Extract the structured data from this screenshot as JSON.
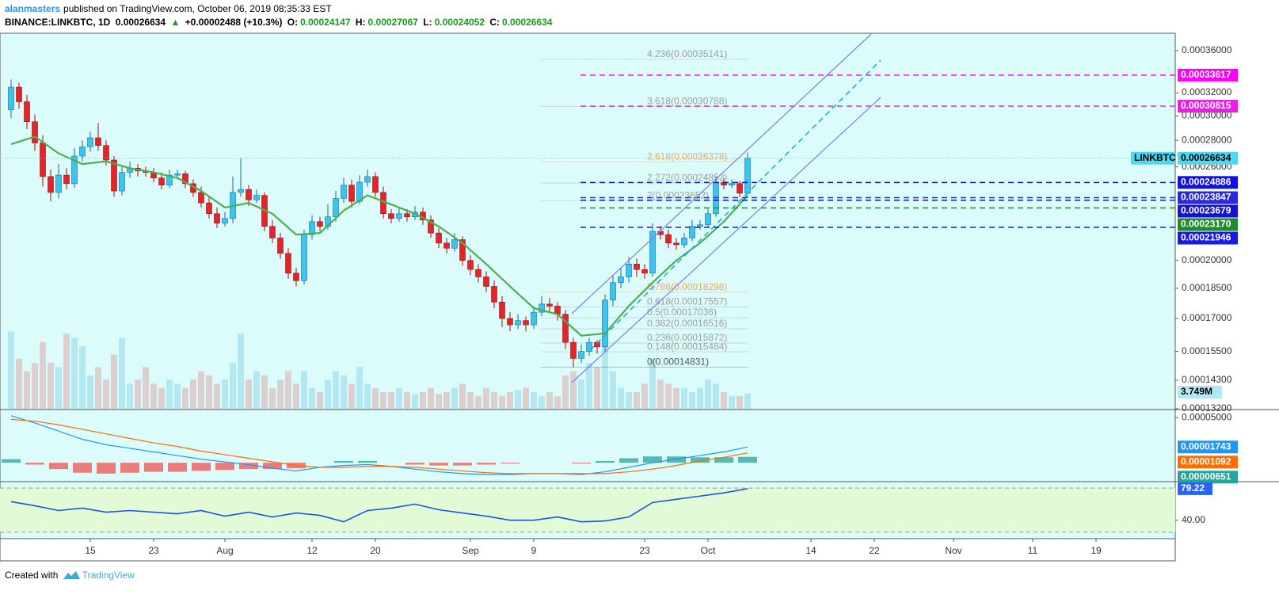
{
  "header": {
    "author": "alanmasters",
    "published": "published on TradingView.com, October 06, 2019 08:35:33 EST",
    "symbol": "BINANCE:LINKBTC, 1D",
    "last": "0.00026634",
    "arrow": "▲",
    "change": "+0.00002488 (+10.3%)",
    "o_label": "O:",
    "o": "0.00024147",
    "h_label": "H:",
    "h": "0.00027067",
    "l_label": "L:",
    "l": "0.00024052",
    "c_label": "C:",
    "c": "0.00026634"
  },
  "footer": {
    "created": "Created with",
    "brand": "TradingView"
  },
  "chart_data": [
    {
      "type": "candlestick",
      "log_scale": true,
      "xlim": [
        -1.4,
        147
      ],
      "ylim": [
        0.000132,
        0.000378
      ],
      "xticks": [
        {
          "value": 10,
          "label": "15"
        },
        {
          "value": 18,
          "label": "23"
        },
        {
          "value": 27,
          "label": "Aug"
        },
        {
          "value": 38,
          "label": "12"
        },
        {
          "value": 46,
          "label": "20"
        },
        {
          "value": 58,
          "label": "Sep"
        },
        {
          "value": 66,
          "label": "9"
        },
        {
          "value": 80,
          "label": "23"
        },
        {
          "value": 88,
          "label": "Oct"
        },
        {
          "value": 101,
          "label": "14"
        },
        {
          "value": 109,
          "label": "22"
        },
        {
          "value": 119,
          "label": "Nov"
        },
        {
          "value": 129,
          "label": "11"
        },
        {
          "value": 137,
          "label": "19"
        }
      ],
      "yticks": [
        {
          "value": 0.00036,
          "label": "0.00036000"
        },
        {
          "value": 0.00032,
          "label": "0.00032000"
        },
        {
          "value": 0.0003,
          "label": "0.00030000"
        },
        {
          "value": 0.00028,
          "label": "0.00028000"
        },
        {
          "value": 0.00026,
          "label": "0.00026000"
        },
        {
          "value": 0.0002,
          "label": "0.00020000"
        },
        {
          "value": 0.000185,
          "label": "0.00018500"
        },
        {
          "value": 0.00017,
          "label": "0.00017000"
        },
        {
          "value": 0.000155,
          "label": "0.00015500"
        },
        {
          "value": 0.000143,
          "label": "0.00014300"
        },
        {
          "value": 0.000132,
          "label": "0.00013200"
        }
      ],
      "up_color": "#3cc3f0",
      "down_color": "#e3242b",
      "open": [
        0.000305,
        0.000325,
        0.000312,
        0.000295,
        0.000278,
        0.000253,
        0.000242,
        0.000254,
        0.000248,
        0.000268,
        0.000275,
        0.000282,
        0.000276,
        0.000265,
        0.000243,
        0.000256,
        0.000259,
        0.000257,
        0.000256,
        0.000252,
        0.000247,
        0.000254,
        0.000255,
        0.000248,
        0.000242,
        0.000235,
        0.000228,
        0.000222,
        0.000225,
        0.000242,
        0.000244,
        0.000237,
        0.00024,
        0.00022,
        0.000213,
        0.000204,
        0.000193,
        0.000189,
        0.000215,
        0.000223,
        0.00022,
        0.000226,
        0.000238,
        0.000247,
        0.000236,
        0.000249,
        0.000253,
        0.000242,
        0.000228,
        0.000225,
        0.000228,
        0.000226,
        0.000229,
        0.000224,
        0.000216,
        0.00021,
        0.000207,
        0.000212,
        0.0002,
        0.000195,
        0.000191,
        0.000186,
        0.000178,
        0.00017,
        0.000167,
        0.000169,
        0.000167,
        0.000173,
        0.000177,
        0.000176,
        0.000172,
        0.000159,
        0.000152,
        0.000155,
        0.000159,
        0.000157,
        0.000179,
        0.000188,
        0.000191,
        0.000198,
        0.000195,
        0.000193,
        0.000217,
        0.000215,
        0.00021,
        0.000209,
        0.000213,
        0.00022,
        0.000221,
        0.000228,
        0.000249,
        0.000247,
        0.000248,
        0.00024147
      ],
      "high": [
        0.000332,
        0.000329,
        0.000318,
        0.000301,
        0.000284,
        0.000258,
        0.000262,
        0.000259,
        0.000274,
        0.00028,
        0.000287,
        0.000294,
        0.00028,
        0.000268,
        0.00026,
        0.000264,
        0.000262,
        0.00026,
        0.000259,
        0.000256,
        0.000258,
        0.000258,
        0.000257,
        0.000251,
        0.000246,
        0.000239,
        0.000232,
        0.000229,
        0.000253,
        0.000266,
        0.000247,
        0.000244,
        0.000242,
        0.000224,
        0.000216,
        0.000207,
        0.000196,
        0.000218,
        0.000227,
        0.000226,
        0.000234,
        0.000243,
        0.000252,
        0.000251,
        0.000254,
        0.000258,
        0.000256,
        0.000246,
        0.000231,
        0.000232,
        0.000231,
        0.000233,
        0.000232,
        0.000227,
        0.000219,
        0.000213,
        0.000216,
        0.000214,
        0.000203,
        0.000198,
        0.000194,
        0.000189,
        0.000181,
        0.000173,
        0.000172,
        0.000171,
        0.000176,
        0.000181,
        0.00018,
        0.000178,
        0.000174,
        0.000161,
        0.000158,
        0.000161,
        0.00016,
        0.000182,
        0.000192,
        0.000196,
        0.000202,
        0.000201,
        0.000198,
        0.000222,
        0.00022,
        0.000218,
        0.000213,
        0.000216,
        0.000224,
        0.000224,
        0.000231,
        0.000253,
        0.000252,
        0.000251,
        0.00025,
        0.00027067
      ],
      "low": [
        0.000298,
        0.000306,
        0.000289,
        0.000272,
        0.000246,
        0.000236,
        0.000238,
        0.000244,
        0.000245,
        0.000264,
        0.000271,
        0.000272,
        0.000261,
        0.000239,
        0.00024,
        0.000252,
        0.000253,
        0.000253,
        0.000249,
        0.000244,
        0.000245,
        0.000251,
        0.000245,
        0.000239,
        0.000232,
        0.000225,
        0.000219,
        0.00022,
        0.000222,
        0.000239,
        0.000233,
        0.000235,
        0.000217,
        0.00021,
        0.000201,
        0.00019,
        0.000186,
        0.000187,
        0.000212,
        0.000217,
        0.000218,
        0.000223,
        0.000235,
        0.000232,
        0.000234,
        0.000246,
        0.000239,
        0.000225,
        0.000222,
        0.000223,
        0.000223,
        0.000224,
        0.000221,
        0.000213,
        0.000207,
        0.000204,
        0.000205,
        0.000197,
        0.000192,
        0.000188,
        0.000183,
        0.000175,
        0.000166,
        0.000164,
        0.000165,
        0.000164,
        0.000165,
        0.000171,
        0.000173,
        0.000169,
        0.000156,
        0.00014831,
        0.00015,
        0.000153,
        0.000154,
        0.000155,
        0.000176,
        0.000185,
        0.000188,
        0.000191,
        0.00019,
        0.000191,
        0.000212,
        0.000207,
        0.000206,
        0.000207,
        0.000211,
        0.000218,
        0.000219,
        0.000226,
        0.000244,
        0.000245,
        0.000239,
        0.00024052
      ],
      "close": [
        0.000325,
        0.000312,
        0.000295,
        0.000278,
        0.000253,
        0.000242,
        0.000254,
        0.000248,
        0.000268,
        0.000275,
        0.000282,
        0.000276,
        0.000265,
        0.000243,
        0.000256,
        0.000259,
        0.000257,
        0.000256,
        0.000252,
        0.000247,
        0.000254,
        0.000255,
        0.000248,
        0.000242,
        0.000235,
        0.000228,
        0.000222,
        0.000225,
        0.000242,
        0.000244,
        0.000237,
        0.00024,
        0.00022,
        0.000213,
        0.000204,
        0.000193,
        0.000189,
        0.000215,
        0.000223,
        0.00022,
        0.000226,
        0.000238,
        0.000247,
        0.000236,
        0.000249,
        0.000253,
        0.000242,
        0.000228,
        0.000225,
        0.000228,
        0.000226,
        0.000229,
        0.000224,
        0.000216,
        0.00021,
        0.000207,
        0.000212,
        0.0002,
        0.000195,
        0.000191,
        0.000186,
        0.000178,
        0.00017,
        0.000167,
        0.000169,
        0.000167,
        0.000173,
        0.000177,
        0.000176,
        0.000172,
        0.000159,
        0.000152,
        0.000155,
        0.000159,
        0.000157,
        0.000179,
        0.000188,
        0.000191,
        0.000198,
        0.000195,
        0.000193,
        0.000217,
        0.000215,
        0.00021,
        0.000209,
        0.000213,
        0.00022,
        0.000221,
        0.000228,
        0.000249,
        0.000247,
        0.000248,
        0.00024147,
        0.00026634
      ],
      "ma": {
        "color": "#4caf50",
        "x": [
          0,
          3,
          6,
          9,
          12,
          15,
          18,
          21,
          24,
          27,
          30,
          33,
          36,
          39,
          42,
          45,
          48,
          51,
          54,
          57,
          60,
          63,
          66,
          69,
          72,
          75,
          78,
          81,
          84,
          87,
          90,
          93
        ],
        "values": [
          0.000277,
          0.000283,
          0.00027,
          0.000262,
          0.000264,
          0.000259,
          0.000256,
          0.000252,
          0.000243,
          0.000232,
          0.000235,
          0.000228,
          0.000215,
          0.000216,
          0.00023,
          0.00024,
          0.000234,
          0.000228,
          0.00022,
          0.00021,
          0.000198,
          0.000186,
          0.000175,
          0.000172,
          0.000162,
          0.000163,
          0.000176,
          0.000188,
          0.0002,
          0.00021,
          0.000223,
          0.00024
        ]
      },
      "price_lines": [
        {
          "value": 0.00033617,
          "color": "#ff00ff"
        },
        {
          "value": 0.00030815,
          "color": "#e91ee9"
        },
        {
          "name": "LINKBTC",
          "value": 0.00026634,
          "color": "#4dd8ee"
        },
        {
          "value": 0.00024886,
          "color": "#1010e0"
        },
        {
          "value": 0.00023847,
          "color": "#2a2ad8"
        },
        {
          "value": 0.00023679,
          "color": "#1414d0"
        },
        {
          "value": 0.0002317,
          "label": "0.00023170",
          "color": "#1e8c2a"
        },
        {
          "value": 0.00021946,
          "color": "#1a1ae6"
        }
      ],
      "fib_levels": [
        {
          "label": "4.236(0.00035141)",
          "value": 0.00035141,
          "color": "#9e9e9e"
        },
        {
          "label": "3.618(0.00030788)",
          "value": 0.00030788,
          "color": "#9e9e9e"
        },
        {
          "label": "2.618(0.00026378)",
          "value": 0.00026378,
          "color": "#f0a860"
        },
        {
          "label": "2.272(0.00024852)",
          "value": 0.00024852,
          "color": "#9e9e9e"
        },
        {
          "label": "2(0.00023652)",
          "value": 0.00023652,
          "color": "#9e9e9e"
        },
        {
          "label": "0.786(0.00018298)",
          "value": 0.00018298,
          "color": "#f0a860"
        },
        {
          "label": "0.618(0.00017557)",
          "value": 0.00017557,
          "color": "#9e9e9e"
        },
        {
          "label": "0.5(0.00017036)",
          "value": 0.00017036,
          "color": "#9e9e9e"
        },
        {
          "label": "0.382(0.00016516)",
          "value": 0.00016516,
          "color": "#9e9e9e"
        },
        {
          "label": "0.236(0.00015872)",
          "value": 0.00015872,
          "color": "#9e9e9e"
        },
        {
          "label": "0.148(0.00015484)",
          "value": 0.00015484,
          "color": "#9e9e9e"
        },
        {
          "label": "0(0.00014831)",
          "value": 0.00014831,
          "color": "#555555"
        }
      ]
    },
    {
      "type": "bar",
      "ylim": [
        0,
        19000000
      ],
      "up_color": "#b3e8f2",
      "down_color": "#dccfcf",
      "last_value_label": "3.749M",
      "values": [
        18500000,
        12000000,
        9000000,
        11000000,
        16000000,
        11000000,
        10000000,
        18000000,
        17000000,
        15000000,
        8000000,
        10000000,
        7000000,
        13000000,
        17000000,
        6000000,
        7000000,
        10000000,
        6000000,
        5000000,
        7000000,
        6000000,
        5000000,
        7000000,
        9000000,
        8000000,
        6000000,
        7000000,
        11000000,
        18000000,
        7000000,
        9000000,
        8000000,
        5000000,
        7000000,
        9000000,
        6000000,
        9000000,
        5000000,
        4000000,
        7000000,
        9000000,
        8000000,
        6000000,
        10000000,
        6000000,
        5000000,
        4000000,
        4000000,
        5000000,
        4000000,
        3500000,
        4000000,
        5000000,
        3500000,
        4000000,
        5000000,
        6000000,
        4000000,
        3000000,
        5000000,
        4000000,
        3000000,
        4000000,
        4500000,
        5000000,
        4000000,
        3000000,
        4000000,
        3000000,
        8000000,
        9000000,
        7000000,
        11000000,
        10000000,
        15000000,
        9000000,
        5000000,
        4000000,
        4000000,
        6000000,
        12000000,
        7000000,
        6000000,
        5000000,
        5000000,
        4000000,
        5000000,
        7000000,
        6000000,
        4000000,
        3000000,
        3000000,
        3749000
      ]
    },
    {
      "type": "macd",
      "ylim": [
        -2e-05,
        5.8e-05
      ],
      "yticks": [
        {
          "value": 5e-05,
          "label": "0.00005000"
        }
      ],
      "x": [
        0,
        3,
        6,
        9,
        12,
        15,
        18,
        21,
        24,
        27,
        30,
        33,
        36,
        39,
        42,
        45,
        48,
        51,
        54,
        57,
        60,
        63,
        66,
        69,
        72,
        75,
        78,
        81,
        84,
        87,
        90,
        93
      ],
      "macd": {
        "color": "#2196f3",
        "values": [
          5.2e-05,
          4.4e-05,
          3.5e-05,
          2.6e-05,
          2e-05,
          1.6e-05,
          1.2e-05,
          8e-06,
          4e-06,
          1e-06,
          -2e-06,
          -6e-06,
          -9e-06,
          -5e-06,
          -3e-06,
          -2e-06,
          -4e-06,
          -7e-06,
          -1e-05,
          -1.2e-05,
          -1.3e-05,
          -1.3e-05,
          -1.2e-05,
          -1.2e-05,
          -1.3e-05,
          -1e-05,
          -5e-06,
          0,
          4e-06,
          8e-06,
          1.2e-05,
          1.743e-05
        ]
      },
      "signal": {
        "color": "#ff6d00",
        "values": [
          4.8e-05,
          4.6e-05,
          4.2e-05,
          3.7e-05,
          3.2e-05,
          2.7e-05,
          2.2e-05,
          1.8e-05,
          1.3e-05,
          9e-06,
          5e-06,
          1e-06,
          -3e-06,
          -5e-06,
          -5e-06,
          -4e-06,
          -4e-06,
          -5e-06,
          -7e-06,
          -9e-06,
          -1.1e-05,
          -1.2e-05,
          -1.2e-05,
          -1.2e-05,
          -1.2e-05,
          -1.2e-05,
          -1e-05,
          -7e-06,
          -3e-06,
          2e-06,
          6e-06,
          1.092e-05
        ]
      },
      "histogram": {
        "up_color": "#26a69a",
        "down_color": "#ef5350",
        "values": [
          4e-06,
          -2e-06,
          -7e-06,
          -1.1e-05,
          -1.2e-05,
          -1.1e-05,
          -1e-05,
          -1e-05,
          -9e-06,
          -8e-06,
          -7e-06,
          -7e-06,
          -6e-06,
          0,
          2e-06,
          2e-06,
          0,
          -2e-06,
          -3e-06,
          -3e-06,
          -2e-06,
          -1e-06,
          0,
          0,
          -1e-06,
          2e-06,
          5e-06,
          7e-06,
          7e-06,
          6e-06,
          6e-06,
          6.51e-06
        ]
      }
    },
    {
      "type": "line",
      "ylim": [
        17,
        87
      ],
      "yticks": [
        {
          "value": 40,
          "label": "40.00"
        }
      ],
      "bands": [
        25,
        80
      ],
      "color": "#1e53e5",
      "x": [
        0,
        3,
        6,
        9,
        12,
        15,
        18,
        21,
        24,
        27,
        30,
        33,
        36,
        39,
        42,
        45,
        48,
        51,
        54,
        57,
        60,
        63,
        66,
        69,
        72,
        75,
        78,
        81,
        84,
        87,
        90,
        93
      ],
      "values": [
        63,
        58,
        52,
        55,
        50,
        52,
        50,
        48,
        52,
        45,
        50,
        44,
        49,
        46,
        38,
        52,
        55,
        60,
        53,
        49,
        45,
        40,
        40,
        44,
        38,
        39,
        44,
        62,
        66,
        70,
        74,
        79.22
      ]
    }
  ]
}
